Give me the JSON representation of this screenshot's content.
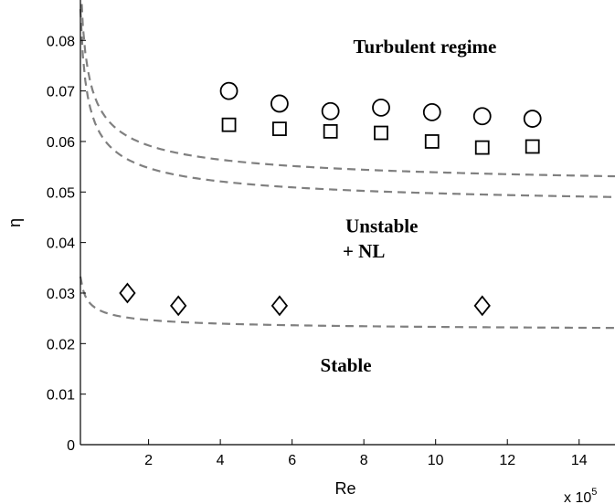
{
  "chart_data": {
    "type": "scatter",
    "title": "",
    "xlabel": "Re",
    "ylabel": "η",
    "x_multiplier_label": "x 10",
    "x_multiplier_exp": "5",
    "xlim": [
      0.1,
      15
    ],
    "ylim": [
      0,
      0.088
    ],
    "xticks": [
      2,
      4,
      6,
      8,
      10,
      12,
      14
    ],
    "xtick_labels": [
      "2",
      "4",
      "6",
      "8",
      "10",
      "12",
      "14"
    ],
    "yticks": [
      0,
      0.01,
      0.02,
      0.03,
      0.04,
      0.05,
      0.06,
      0.07,
      0.08
    ],
    "ytick_labels": [
      "0",
      "0.01",
      "0.02",
      "0.03",
      "0.04",
      "0.05",
      "0.06",
      "0.07",
      "0.08"
    ],
    "grid": false,
    "series": [
      {
        "marker": "circle",
        "x": [
          4.24,
          5.65,
          7.07,
          8.48,
          9.9,
          11.3,
          12.7
        ],
        "y": [
          0.07,
          0.0675,
          0.066,
          0.0667,
          0.0658,
          0.065,
          0.0645
        ]
      },
      {
        "marker": "square",
        "x": [
          4.24,
          5.65,
          7.07,
          8.48,
          9.9,
          11.3,
          12.7
        ],
        "y": [
          0.0633,
          0.0625,
          0.062,
          0.0617,
          0.06,
          0.0588,
          0.059
        ]
      },
      {
        "marker": "diamond",
        "x": [
          1.41,
          2.83,
          5.65,
          11.3
        ],
        "y": [
          0.03,
          0.0275,
          0.0275,
          0.0275
        ]
      }
    ],
    "fit_curves": [
      {
        "style": "dashed",
        "color": "#808080",
        "a": 0.0496,
        "b": 0.0136
      },
      {
        "style": "dashed",
        "color": "#808080",
        "a": 0.0457,
        "b": 0.0128
      },
      {
        "style": "dashed",
        "color": "#808080",
        "a": 0.0222,
        "b": 0.0035
      }
    ],
    "annotations": [
      {
        "text": "Turbulent regime",
        "x": 9.7,
        "y": 0.0775
      },
      {
        "text": "Unstable",
        "x": 8.5,
        "y": 0.042
      },
      {
        "text": "+ NL",
        "x": 8.0,
        "y": 0.037
      },
      {
        "text": "Stable",
        "x": 7.5,
        "y": 0.0145
      }
    ]
  }
}
